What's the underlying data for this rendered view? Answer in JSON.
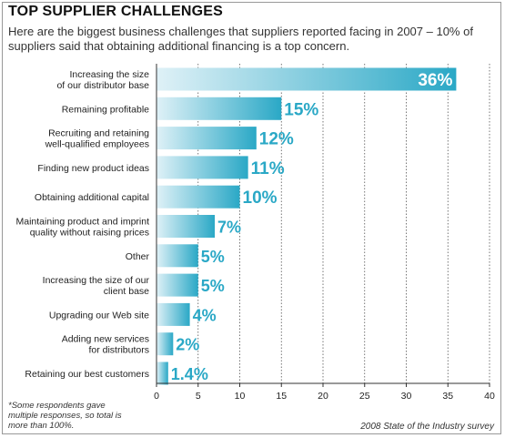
{
  "chart_data": {
    "type": "bar",
    "orientation": "horizontal",
    "title": "TOP SUPPLIER CHALLENGES",
    "subtitle": "Here are the biggest business challenges that suppliers reported facing in 2007 – 10% of suppliers said that obtaining additional financing is a top concern.",
    "categories": [
      [
        "Increasing the size",
        "of our distributor base"
      ],
      [
        "Remaining profitable"
      ],
      [
        "Recruiting and retaining",
        "well-qualified employees"
      ],
      [
        "Finding new product ideas"
      ],
      [
        "Obtaining additional capital"
      ],
      [
        "Maintaining product and imprint",
        "quality without raising prices"
      ],
      [
        "Other"
      ],
      [
        "Increasing the size of our",
        "client base"
      ],
      [
        "Upgrading our Web site"
      ],
      [
        "Adding new services",
        "for distributors"
      ],
      [
        "Retaining our best customers"
      ]
    ],
    "values": [
      36,
      15,
      12,
      11,
      10,
      7,
      5,
      5,
      4,
      2,
      1.4
    ],
    "value_labels": [
      "36%",
      "15%",
      "12%",
      "11%",
      "10%",
      "7%",
      "5%",
      "5%",
      "4%",
      "2%",
      "1.4%"
    ],
    "xlim": [
      0,
      40
    ],
    "xticks": [
      "0",
      "5",
      "10",
      "15",
      "20",
      "25",
      "30",
      "35",
      "40"
    ],
    "grid": "vertical dotted",
    "bar_color": "#2aa8c6",
    "bar_color_light": "#dff1f7",
    "label_color": "#2aa8c6",
    "footnote": "*Some respondents gave multiple responses, so total is more than 100%.",
    "source": "2008 State of the Industry survey"
  }
}
